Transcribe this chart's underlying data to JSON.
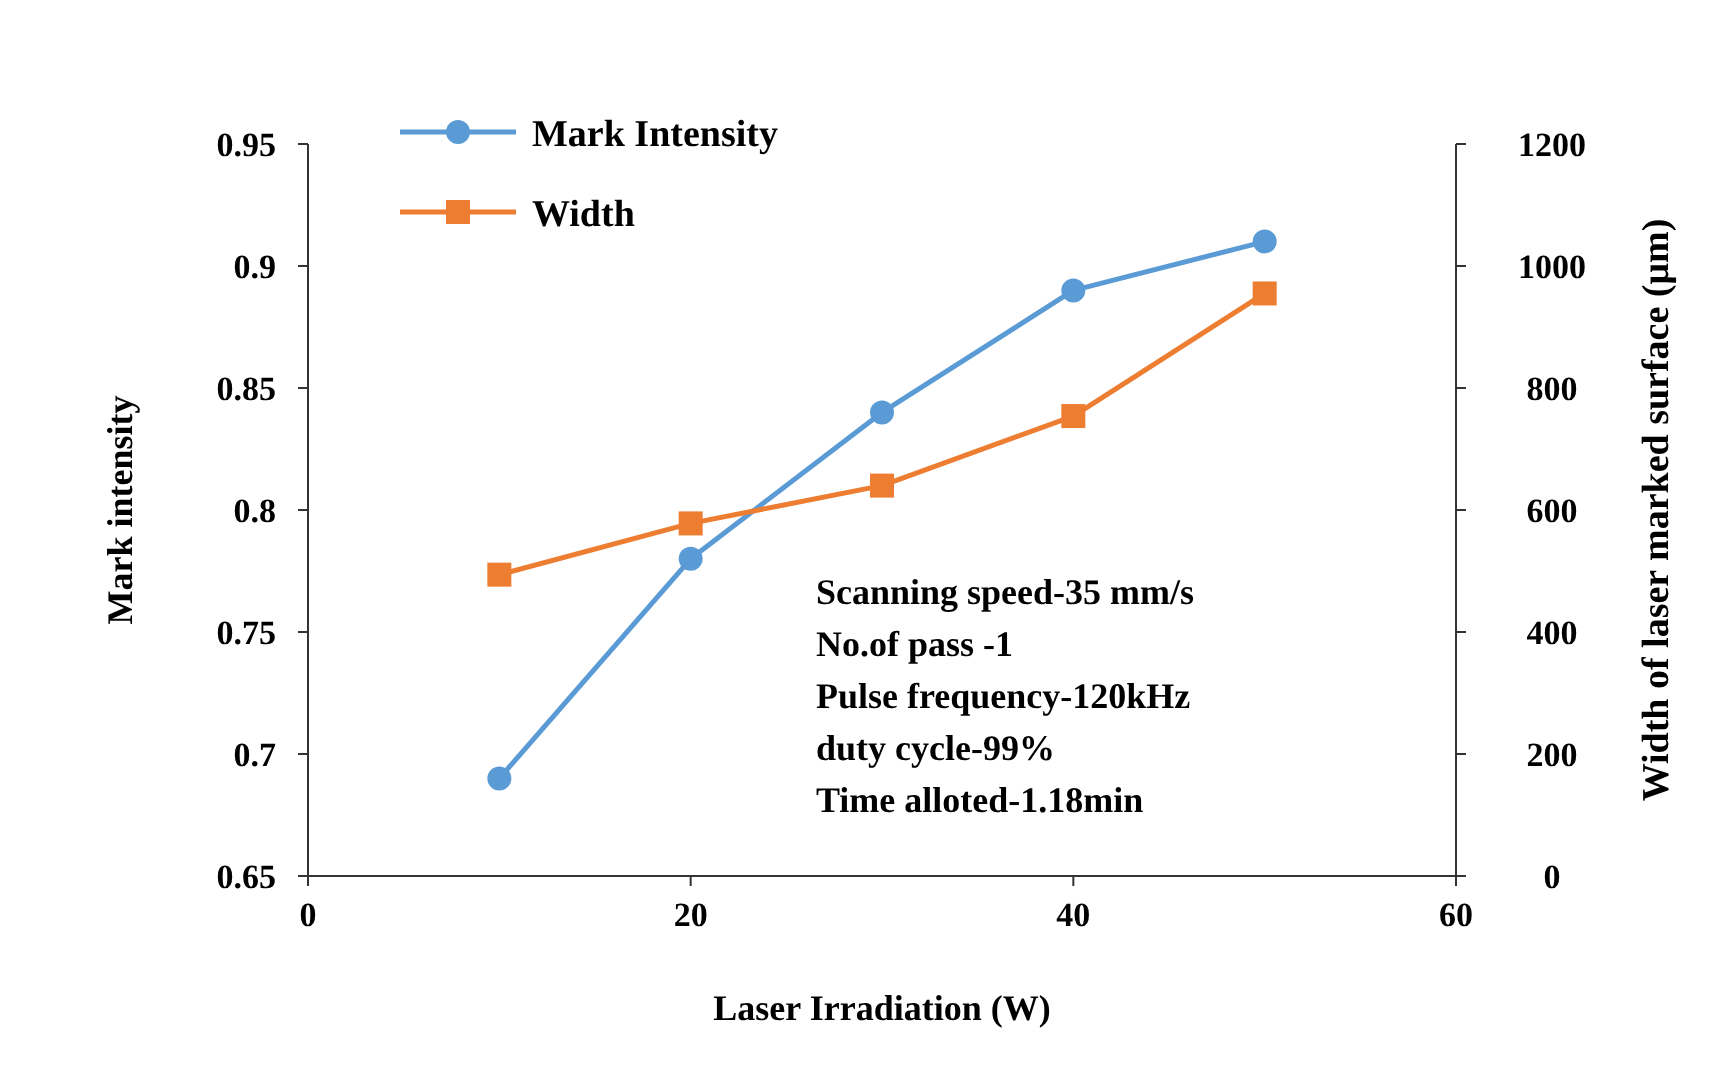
{
  "chart_data": {
    "type": "line",
    "xlabel": "Laser Irradiation (W)",
    "ylabel": "Mark intensity",
    "y2label": "Width of laser marked surface (μm)",
    "x": [
      10,
      20,
      30,
      40,
      50
    ],
    "series": [
      {
        "name": "Mark Intensity",
        "color": "#5b9bd5",
        "marker": "circle",
        "values": [
          0.69,
          0.78,
          0.84,
          0.89,
          0.91
        ]
      },
      {
        "name": "Width",
        "color": "#ed7d31",
        "marker": "square",
        "axis": "y2",
        "values": [
          494,
          578,
          640,
          754,
          955
        ]
      }
    ],
    "xlim": [
      0,
      60
    ],
    "xticks": [
      0,
      20,
      40,
      60
    ],
    "ylim": [
      0.65,
      0.95
    ],
    "yticks": [
      {
        "value": 0.65,
        "label": "0.65"
      },
      {
        "value": 0.7,
        "label": "0.7"
      },
      {
        "value": 0.75,
        "label": "0.75"
      },
      {
        "value": 0.8,
        "label": "0.8"
      },
      {
        "value": 0.85,
        "label": "0.85"
      },
      {
        "value": 0.9,
        "label": "0.9"
      },
      {
        "value": 0.95,
        "label": "0.95"
      }
    ],
    "y2lim": [
      0,
      1200
    ],
    "y2ticks": [
      0,
      200,
      400,
      600,
      800,
      1000,
      1200
    ],
    "legend": "top left",
    "grid": false,
    "annotations": [
      "Scanning speed-35 mm/s",
      "No.of pass -1",
      "Pulse frequency-120kHz",
      "duty cycle-99%",
      "Time alloted-1.18min"
    ]
  }
}
